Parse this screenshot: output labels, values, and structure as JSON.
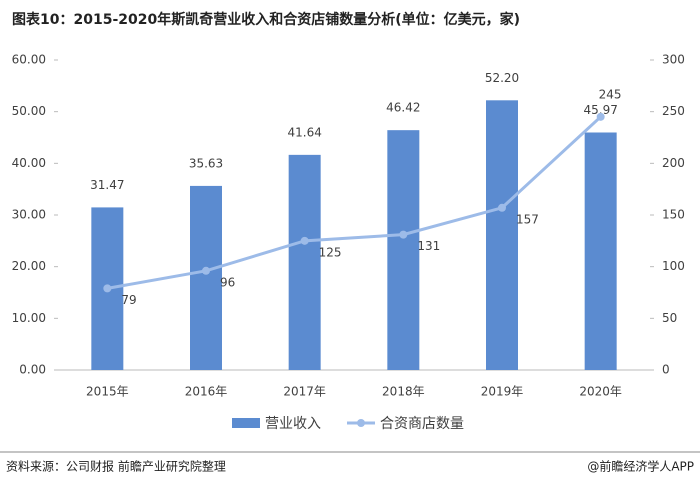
{
  "chart_data": {
    "type": "bar",
    "title": "图表10：2015-2020年斯凯奇营业收入和合资店铺数量分析(单位：亿美元，家)",
    "categories": [
      "2015年",
      "2016年",
      "2017年",
      "2018年",
      "2019年",
      "2020年"
    ],
    "series": [
      {
        "name": "营业收入",
        "type": "bar",
        "color": "#5b8bd0",
        "values": [
          31.47,
          35.63,
          41.64,
          46.42,
          52.2,
          45.97
        ],
        "value_labels": [
          "31.47",
          "35.63",
          "41.64",
          "46.42",
          "52.20",
          "45.97"
        ]
      },
      {
        "name": "合资商店数量",
        "type": "line",
        "axis": "y2",
        "color": "#9dbbe8",
        "values": [
          79,
          96,
          125,
          131,
          157,
          245
        ]
      }
    ],
    "ylim": [
      0,
      60
    ],
    "yticks": [
      {
        "value": 0,
        "label": "0.00"
      },
      {
        "value": 10,
        "label": "10.00"
      },
      {
        "value": 20,
        "label": "20.00"
      },
      {
        "value": 30,
        "label": "30.00"
      },
      {
        "value": 40,
        "label": "40.00"
      },
      {
        "value": 50,
        "label": "50.00"
      },
      {
        "value": 60,
        "label": "60.00"
      }
    ],
    "y2lim": [
      0,
      300
    ],
    "y2ticks": [
      0,
      50,
      100,
      150,
      200,
      250,
      300
    ],
    "grid": false,
    "legend": "bottom"
  },
  "source": "资料来源：公司财报 前瞻产业研究院整理",
  "credit": "@前瞻经济学人APP"
}
